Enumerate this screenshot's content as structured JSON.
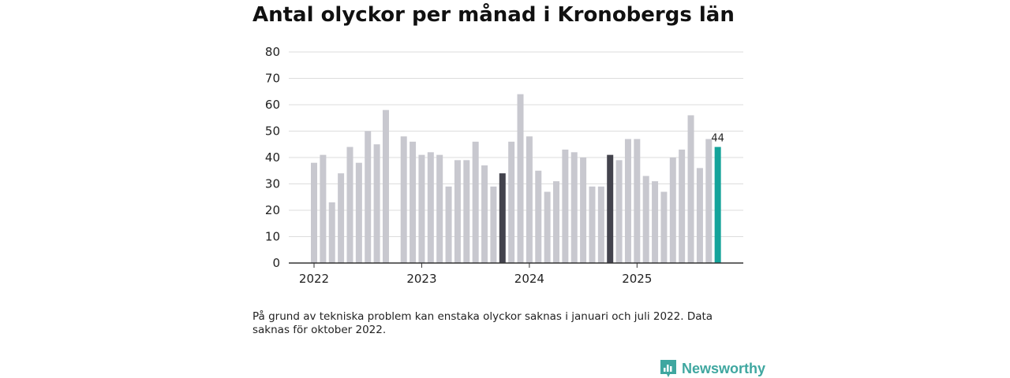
{
  "title": "Antal olyckor per månad i Kronobergs län",
  "note": "På grund av tekniska problem kan enstaka olyckor saknas i januari och juli 2022. Data saknas för oktober 2022.",
  "brand": {
    "name": "Newsworthy",
    "icon": "bar-chart-logo-icon"
  },
  "colors": {
    "default": "#c8c8cf",
    "highlight": "#43434d",
    "latest": "#14a39a",
    "grid": "#dddddd",
    "axis": "#333333"
  },
  "chart_data": {
    "type": "bar",
    "title": "Antal olyckor per månad i Kronobergs län",
    "xlabel": "",
    "ylabel": "",
    "ylim": [
      0,
      80
    ],
    "yticks": [
      0,
      10,
      20,
      30,
      40,
      50,
      60,
      70,
      80
    ],
    "year_labels": [
      "2022",
      "2023",
      "2024",
      "2025"
    ],
    "months": [
      {
        "year": 2022,
        "month": 1,
        "value": 38
      },
      {
        "year": 2022,
        "month": 2,
        "value": 41
      },
      {
        "year": 2022,
        "month": 3,
        "value": 23
      },
      {
        "year": 2022,
        "month": 4,
        "value": 34
      },
      {
        "year": 2022,
        "month": 5,
        "value": 44
      },
      {
        "year": 2022,
        "month": 6,
        "value": 38
      },
      {
        "year": 2022,
        "month": 7,
        "value": 50
      },
      {
        "year": 2022,
        "month": 8,
        "value": 45
      },
      {
        "year": 2022,
        "month": 9,
        "value": 58
      },
      {
        "year": 2022,
        "month": 10,
        "value": null
      },
      {
        "year": 2022,
        "month": 11,
        "value": 48
      },
      {
        "year": 2022,
        "month": 12,
        "value": 46
      },
      {
        "year": 2023,
        "month": 1,
        "value": 41
      },
      {
        "year": 2023,
        "month": 2,
        "value": 42
      },
      {
        "year": 2023,
        "month": 3,
        "value": 41
      },
      {
        "year": 2023,
        "month": 4,
        "value": 29
      },
      {
        "year": 2023,
        "month": 5,
        "value": 39
      },
      {
        "year": 2023,
        "month": 6,
        "value": 39
      },
      {
        "year": 2023,
        "month": 7,
        "value": 46
      },
      {
        "year": 2023,
        "month": 8,
        "value": 37
      },
      {
        "year": 2023,
        "month": 9,
        "value": 29
      },
      {
        "year": 2023,
        "month": 10,
        "value": 34,
        "highlight": true
      },
      {
        "year": 2023,
        "month": 11,
        "value": 46
      },
      {
        "year": 2023,
        "month": 12,
        "value": 64
      },
      {
        "year": 2024,
        "month": 1,
        "value": 48
      },
      {
        "year": 2024,
        "month": 2,
        "value": 35
      },
      {
        "year": 2024,
        "month": 3,
        "value": 27
      },
      {
        "year": 2024,
        "month": 4,
        "value": 31
      },
      {
        "year": 2024,
        "month": 5,
        "value": 43
      },
      {
        "year": 2024,
        "month": 6,
        "value": 42
      },
      {
        "year": 2024,
        "month": 7,
        "value": 40
      },
      {
        "year": 2024,
        "month": 8,
        "value": 29
      },
      {
        "year": 2024,
        "month": 9,
        "value": 29
      },
      {
        "year": 2024,
        "month": 10,
        "value": 41,
        "highlight": true
      },
      {
        "year": 2024,
        "month": 11,
        "value": 39
      },
      {
        "year": 2024,
        "month": 12,
        "value": 47
      },
      {
        "year": 2025,
        "month": 1,
        "value": 47
      },
      {
        "year": 2025,
        "month": 2,
        "value": 33
      },
      {
        "year": 2025,
        "month": 3,
        "value": 31
      },
      {
        "year": 2025,
        "month": 4,
        "value": 27
      },
      {
        "year": 2025,
        "month": 5,
        "value": 40
      },
      {
        "year": 2025,
        "month": 6,
        "value": 43
      },
      {
        "year": 2025,
        "month": 7,
        "value": 56
      },
      {
        "year": 2025,
        "month": 8,
        "value": 36
      },
      {
        "year": 2025,
        "month": 9,
        "value": 47
      },
      {
        "year": 2025,
        "month": 10,
        "value": 44,
        "latest": true,
        "label": "44"
      }
    ]
  }
}
